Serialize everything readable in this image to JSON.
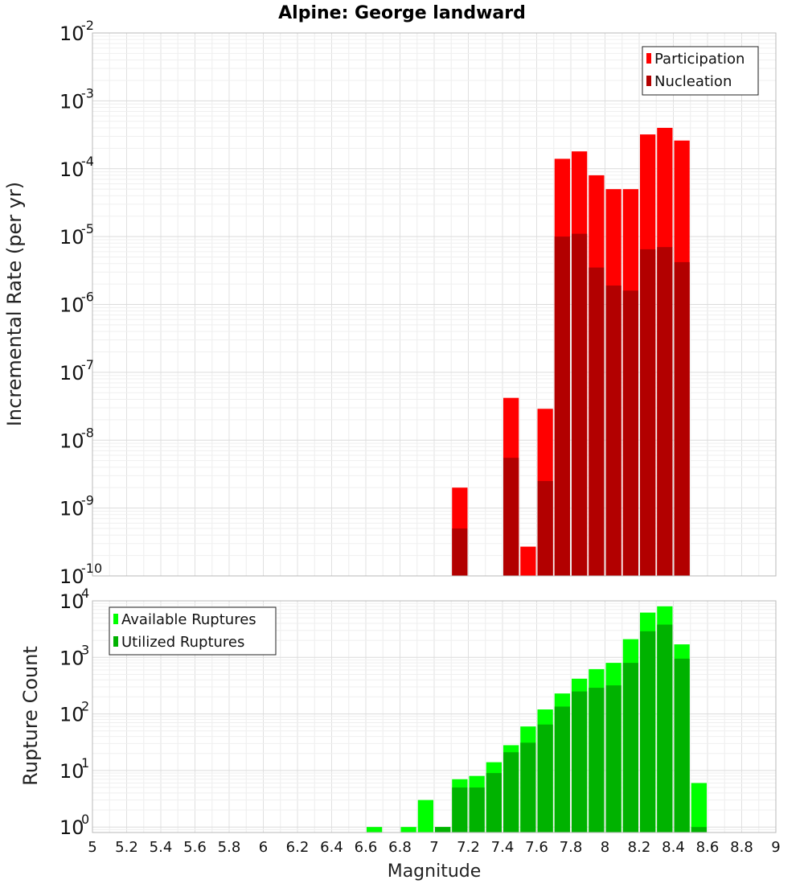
{
  "page": {
    "title": "Alpine: George landward",
    "xlabel": "Magnitude"
  },
  "chart_data": [
    {
      "type": "bar",
      "title": "Alpine: George landward",
      "ylabel": "Incremental Rate (per yr)",
      "xlabel": "Magnitude",
      "yscale": "log",
      "xlim": [
        5,
        9
      ],
      "ylim": [
        1e-10,
        0.01
      ],
      "y_ticks": [
        {
          "base": "10",
          "exp": "-2"
        },
        {
          "base": "10",
          "exp": "-3"
        },
        {
          "base": "10",
          "exp": "-4"
        },
        {
          "base": "10",
          "exp": "-5"
        },
        {
          "base": "10",
          "exp": "-6"
        },
        {
          "base": "10",
          "exp": "-7"
        },
        {
          "base": "10",
          "exp": "-8"
        },
        {
          "base": "10",
          "exp": "-9"
        },
        {
          "base": "10",
          "exp": "-10"
        }
      ],
      "legend_position": "top-right",
      "grid": true,
      "series": [
        {
          "name": "Participation",
          "color": "#ff0000",
          "x": [
            7.15,
            7.45,
            7.55,
            7.65,
            7.75,
            7.85,
            7.95,
            8.05,
            8.15,
            8.25,
            8.35,
            8.45
          ],
          "values": [
            2e-09,
            4.2e-08,
            2.7e-10,
            2.9e-08,
            0.00014,
            0.00018,
            8e-05,
            5e-05,
            5e-05,
            0.00032,
            0.0004,
            0.00026
          ]
        },
        {
          "name": "Nucleation",
          "color": "#b20000",
          "x": [
            7.15,
            7.45,
            7.65,
            7.75,
            7.85,
            7.95,
            8.05,
            8.15,
            8.25,
            8.35,
            8.45
          ],
          "values": [
            5e-10,
            5.5e-09,
            2.5e-09,
            1e-05,
            1.1e-05,
            3.5e-06,
            1.9e-06,
            1.6e-06,
            6.5e-06,
            7e-06,
            4.2e-06
          ]
        }
      ]
    },
    {
      "type": "bar",
      "ylabel": "Rupture Count",
      "xlabel": "Magnitude",
      "yscale": "log",
      "xlim": [
        5,
        9
      ],
      "ylim": [
        0.8,
        10000
      ],
      "y_ticks": [
        {
          "base": "10",
          "exp": "4"
        },
        {
          "base": "10",
          "exp": "3"
        },
        {
          "base": "10",
          "exp": "2"
        },
        {
          "base": "10",
          "exp": "1"
        },
        {
          "base": "10",
          "exp": "0"
        }
      ],
      "x_ticks": [
        "5",
        "5.2",
        "5.4",
        "5.6",
        "5.8",
        "6",
        "6.2",
        "6.4",
        "6.6",
        "6.8",
        "7",
        "7.2",
        "7.4",
        "7.6",
        "7.8",
        "8",
        "8.2",
        "8.4",
        "8.6",
        "8.8",
        "9"
      ],
      "legend_position": "top-left",
      "grid": true,
      "series": [
        {
          "name": "Available Ruptures",
          "color": "#00ff00",
          "x": [
            6.65,
            6.85,
            6.95,
            7.05,
            7.15,
            7.25,
            7.35,
            7.45,
            7.55,
            7.65,
            7.75,
            7.85,
            7.95,
            8.05,
            8.15,
            8.25,
            8.35,
            8.45,
            8.55
          ],
          "values": [
            1,
            1,
            3,
            1,
            7,
            8,
            14,
            28,
            60,
            120,
            230,
            420,
            620,
            800,
            2100,
            6200,
            8000,
            1700,
            6
          ]
        },
        {
          "name": "Utilized Ruptures",
          "color": "#00b200",
          "x": [
            7.05,
            7.15,
            7.25,
            7.35,
            7.45,
            7.55,
            7.65,
            7.75,
            7.85,
            7.95,
            8.05,
            8.15,
            8.25,
            8.35,
            8.45,
            8.55
          ],
          "values": [
            1,
            5,
            5,
            9,
            21,
            31,
            65,
            135,
            250,
            290,
            320,
            800,
            2900,
            3800,
            950,
            1
          ]
        }
      ]
    }
  ]
}
